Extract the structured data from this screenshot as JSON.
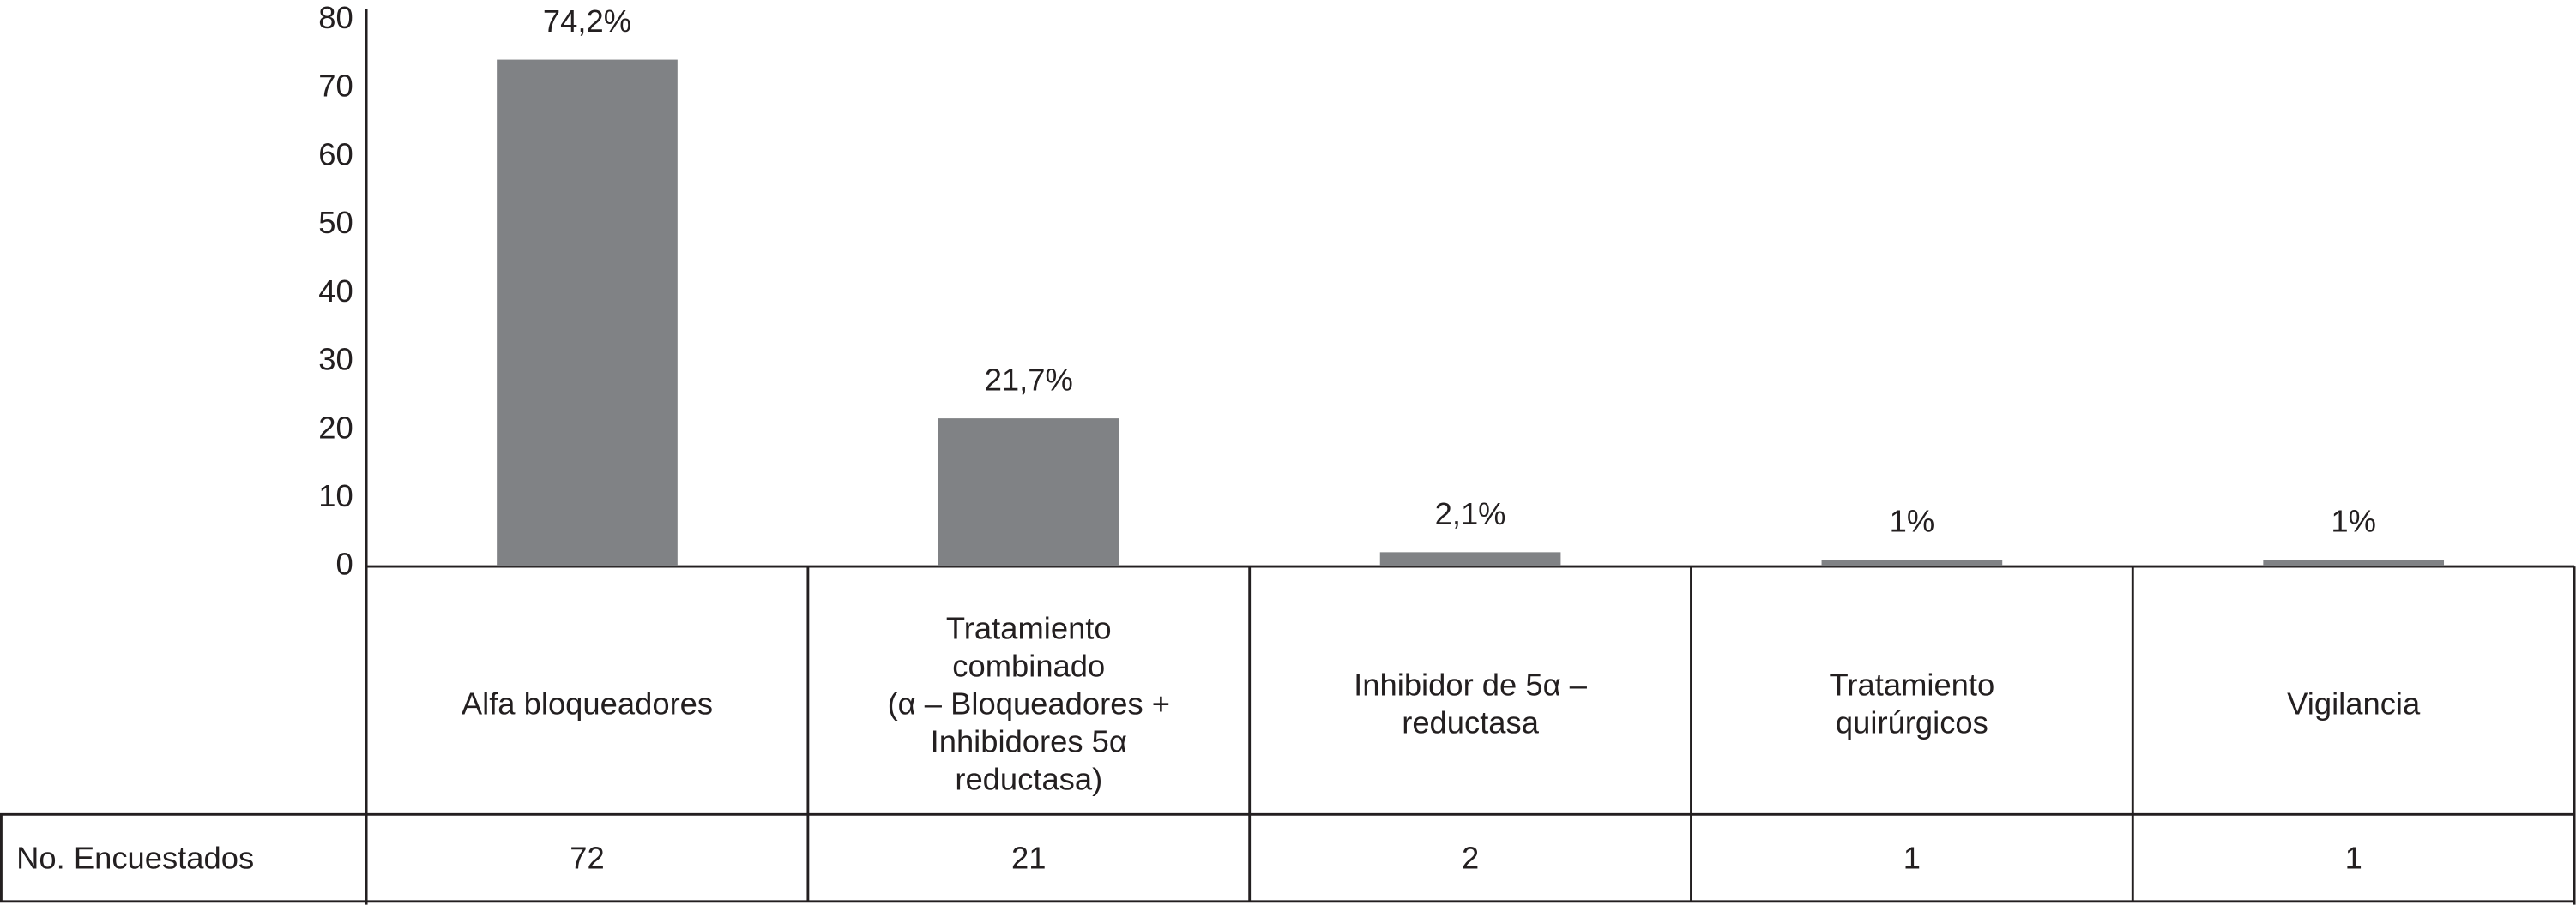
{
  "chart_data": {
    "type": "bar",
    "categories": [
      [
        "Alfa bloqueadores"
      ],
      [
        "Tratamiento",
        "combinado",
        "(α – Bloqueadores +",
        "Inhibidores 5α",
        "reductasa)"
      ],
      [
        "Inhibidor de 5α –",
        "reductasa"
      ],
      [
        "Tratamiento",
        "quirúrgicos"
      ],
      [
        "Vigilancia"
      ]
    ],
    "values": [
      74.2,
      21.7,
      2.1,
      1,
      1
    ],
    "value_labels": [
      "74,2%",
      "21,7%",
      "2,1%",
      "1%",
      "1%"
    ],
    "color": "#808285",
    "ylim": [
      0,
      80
    ],
    "yticks": [
      0,
      10,
      20,
      30,
      40,
      50,
      60,
      70,
      80
    ]
  },
  "table": {
    "row_header": "No. Encuestados",
    "values": [
      72,
      21,
      2,
      1,
      1
    ]
  }
}
